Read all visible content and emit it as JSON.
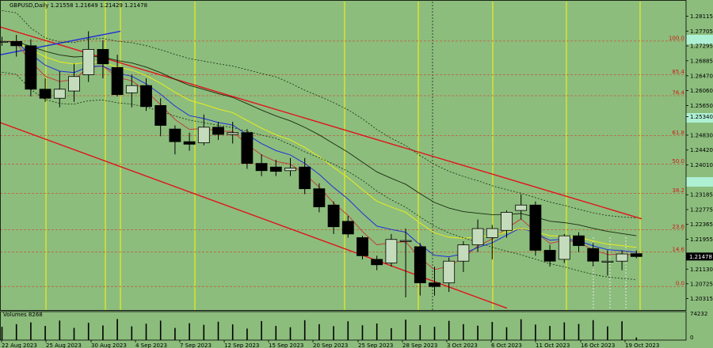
{
  "colors": {
    "background": "#8cbd7d",
    "bull_fill": "#c4dcbc",
    "bear_fill": "#000000",
    "vline": "#ecec1a",
    "fib": "#c05a3a",
    "channel": "#e0141c",
    "blue_trend": "#1f2fd8",
    "ma_yellow": "#ecec1a",
    "ma_blue": "#2030d8",
    "ma_red": "#c0403a",
    "ma_black": "#1c2a10",
    "highlight": "#aef0d4"
  },
  "chart_data": {
    "type": "candlestick",
    "title": "GBPUSD,Daily  1.21558 1.21649 1.21429 1.21478",
    "ylim": [
      1.2,
      1.2852
    ],
    "y_ticks": [
      "1.28115",
      "1.27705",
      "1.27295",
      "1.26885",
      "1.26470",
      "1.26060",
      "1.25650",
      "1.25340",
      "1.24830",
      "1.24420",
      "1.24010",
      "1.23185",
      "1.22775",
      "1.22365",
      "1.21955",
      "1.21130",
      "1.20725",
      "1.20315"
    ],
    "current_price": "1.21478",
    "x_labels": [
      "22 Aug 2023",
      "25 Aug 2023",
      "30 Aug 2023",
      "4 Sep 2023",
      "7 Sep 2023",
      "12 Sep 2023",
      "15 Sep 2023",
      "20 Sep 2023",
      "25 Sep 2023",
      "28 Sep 2023",
      "3 Oct 2023",
      "6 Oct 2023",
      "11 Oct 2023",
      "16 Oct 2023",
      "19 Oct 2023"
    ],
    "candles": [
      {
        "o": 1.274,
        "h": 1.2755,
        "l": 1.273,
        "c": 1.2742
      },
      {
        "o": 1.2742,
        "h": 1.276,
        "l": 1.27,
        "c": 1.273
      },
      {
        "o": 1.273,
        "h": 1.2748,
        "l": 1.259,
        "c": 1.261
      },
      {
        "o": 1.261,
        "h": 1.264,
        "l": 1.2575,
        "c": 1.2585
      },
      {
        "o": 1.2585,
        "h": 1.266,
        "l": 1.256,
        "c": 1.261
      },
      {
        "o": 1.2605,
        "h": 1.268,
        "l": 1.2575,
        "c": 1.2645
      },
      {
        "o": 1.265,
        "h": 1.277,
        "l": 1.263,
        "c": 1.272
      },
      {
        "o": 1.272,
        "h": 1.2745,
        "l": 1.264,
        "c": 1.268
      },
      {
        "o": 1.267,
        "h": 1.2705,
        "l": 1.259,
        "c": 1.2595
      },
      {
        "o": 1.26,
        "h": 1.265,
        "l": 1.256,
        "c": 1.262
      },
      {
        "o": 1.262,
        "h": 1.264,
        "l": 1.255,
        "c": 1.2562
      },
      {
        "o": 1.2565,
        "h": 1.2585,
        "l": 1.248,
        "c": 1.251
      },
      {
        "o": 1.25,
        "h": 1.251,
        "l": 1.243,
        "c": 1.2465
      },
      {
        "o": 1.2465,
        "h": 1.249,
        "l": 1.244,
        "c": 1.2458
      },
      {
        "o": 1.2462,
        "h": 1.254,
        "l": 1.2455,
        "c": 1.2505
      },
      {
        "o": 1.2505,
        "h": 1.252,
        "l": 1.247,
        "c": 1.2485
      },
      {
        "o": 1.2485,
        "h": 1.252,
        "l": 1.246,
        "c": 1.249
      },
      {
        "o": 1.249,
        "h": 1.25,
        "l": 1.239,
        "c": 1.2405
      },
      {
        "o": 1.2405,
        "h": 1.243,
        "l": 1.237,
        "c": 1.2385
      },
      {
        "o": 1.2395,
        "h": 1.2415,
        "l": 1.237,
        "c": 1.2383
      },
      {
        "o": 1.2385,
        "h": 1.242,
        "l": 1.237,
        "c": 1.2392
      },
      {
        "o": 1.2395,
        "h": 1.242,
        "l": 1.232,
        "c": 1.2335
      },
      {
        "o": 1.2335,
        "h": 1.235,
        "l": 1.227,
        "c": 1.2285
      },
      {
        "o": 1.229,
        "h": 1.23,
        "l": 1.221,
        "c": 1.223
      },
      {
        "o": 1.2245,
        "h": 1.226,
        "l": 1.22,
        "c": 1.221
      },
      {
        "o": 1.22,
        "h": 1.2205,
        "l": 1.214,
        "c": 1.215
      },
      {
        "o": 1.214,
        "h": 1.215,
        "l": 1.211,
        "c": 1.2125
      },
      {
        "o": 1.213,
        "h": 1.221,
        "l": 1.212,
        "c": 1.2195
      },
      {
        "o": 1.219,
        "h": 1.2225,
        "l": 1.2035,
        "c": 1.2192
      },
      {
        "o": 1.2175,
        "h": 1.2185,
        "l": 1.204,
        "c": 1.2075
      },
      {
        "o": 1.2075,
        "h": 1.212,
        "l": 1.204,
        "c": 1.2065
      },
      {
        "o": 1.2075,
        "h": 1.2145,
        "l": 1.205,
        "c": 1.2135
      },
      {
        "o": 1.2135,
        "h": 1.219,
        "l": 1.2105,
        "c": 1.218
      },
      {
        "o": 1.218,
        "h": 1.225,
        "l": 1.216,
        "c": 1.2225
      },
      {
        "o": 1.22,
        "h": 1.2235,
        "l": 1.214,
        "c": 1.2225
      },
      {
        "o": 1.222,
        "h": 1.2275,
        "l": 1.22,
        "c": 1.227
      },
      {
        "o": 1.2275,
        "h": 1.232,
        "l": 1.225,
        "c": 1.229
      },
      {
        "o": 1.229,
        "h": 1.23,
        "l": 1.215,
        "c": 1.2165
      },
      {
        "o": 1.2165,
        "h": 1.218,
        "l": 1.212,
        "c": 1.2135
      },
      {
        "o": 1.214,
        "h": 1.221,
        "l": 1.213,
        "c": 1.2205
      },
      {
        "o": 1.2205,
        "h": 1.2215,
        "l": 1.216,
        "c": 1.2178
      },
      {
        "o": 1.217,
        "h": 1.2185,
        "l": 1.212,
        "c": 1.2135
      },
      {
        "o": 1.2135,
        "h": 1.2165,
        "l": 1.2095,
        "c": 1.2135
      },
      {
        "o": 1.2135,
        "h": 1.2165,
        "l": 1.211,
        "c": 1.2155
      },
      {
        "o": 1.21558,
        "h": 1.21649,
        "l": 1.21429,
        "c": 1.21478
      }
    ],
    "fib_levels": [
      {
        "label": "100.0",
        "price": 1.2743
      },
      {
        "label": "85.4",
        "price": 1.265
      },
      {
        "label": "76.4",
        "price": 1.2592
      },
      {
        "label": "61.8",
        "price": 1.2482
      },
      {
        "label": "50.0",
        "price": 1.2403
      },
      {
        "label": "38.2",
        "price": 1.2322
      },
      {
        "label": "23.6",
        "price": 1.2222
      },
      {
        "label": "14.6",
        "price": 1.216
      },
      {
        "label": "0.0",
        "price": 1.2065
      }
    ],
    "volume_label": "Volumes 8268",
    "volume_axis": [
      "74232",
      "0"
    ],
    "volumes": [
      0.6,
      0.72,
      0.8,
      0.64,
      0.88,
      0.55,
      0.78,
      0.66,
      0.95,
      0.62,
      0.74,
      0.88,
      0.55,
      0.76,
      0.69,
      0.83,
      0.71,
      0.52,
      0.86,
      0.64,
      0.58,
      0.9,
      0.72,
      0.63,
      0.85,
      0.67,
      0.75,
      0.54,
      0.92,
      0.68,
      0.6,
      0.87,
      0.72,
      0.65,
      0.82,
      0.58,
      0.94,
      0.7,
      0.64,
      0.8,
      0.73,
      0.9,
      0.62,
      0.85,
      0.12
    ]
  }
}
